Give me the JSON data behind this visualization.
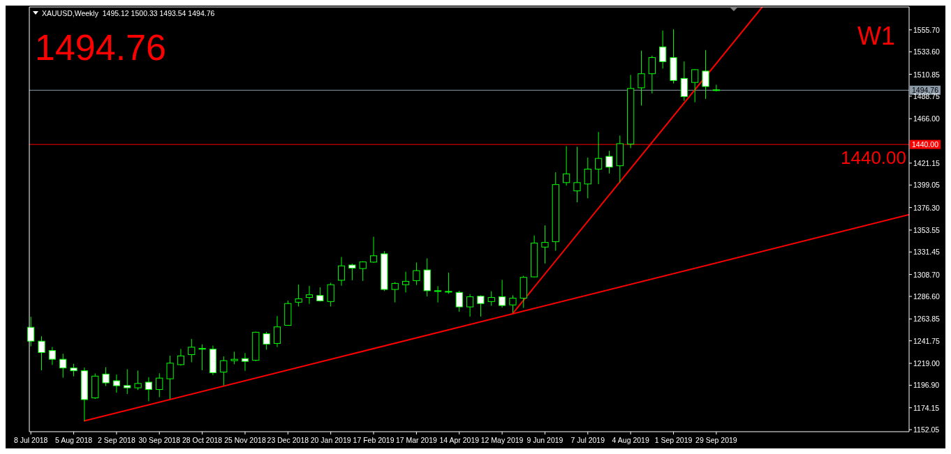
{
  "chart_data": {
    "type": "candlestick",
    "title": "XAUUSD,Weekly  1495.12 1500.33 1493.54 1494.76",
    "color": "#00ff00",
    "x": [
      "2018-07-08",
      "2018-07-15",
      "2018-07-22",
      "2018-07-29",
      "2018-08-05",
      "2018-08-12",
      "2018-08-19",
      "2018-08-26",
      "2018-09-02",
      "2018-09-09",
      "2018-09-16",
      "2018-09-23",
      "2018-09-30",
      "2018-10-07",
      "2018-10-14",
      "2018-10-21",
      "2018-10-28",
      "2018-11-04",
      "2018-11-11",
      "2018-11-18",
      "2018-11-25",
      "2018-12-02",
      "2018-12-09",
      "2018-12-16",
      "2018-12-23",
      "2018-12-30",
      "2019-01-06",
      "2019-01-13",
      "2019-01-20",
      "2019-01-27",
      "2019-02-03",
      "2019-02-10",
      "2019-02-17",
      "2019-02-24",
      "2019-03-03",
      "2019-03-10",
      "2019-03-17",
      "2019-03-24",
      "2019-03-31",
      "2019-04-07",
      "2019-04-14",
      "2019-04-21",
      "2019-04-28",
      "2019-05-05",
      "2019-05-12",
      "2019-05-19",
      "2019-05-26",
      "2019-06-02",
      "2019-06-09",
      "2019-06-16",
      "2019-06-23",
      "2019-06-30",
      "2019-07-07",
      "2019-07-14",
      "2019-07-21",
      "2019-07-28",
      "2019-08-04",
      "2019-08-11",
      "2019-08-18",
      "2019-08-25",
      "2019-09-01",
      "2019-09-08",
      "2019-09-15",
      "2019-09-22",
      "2019-09-29"
    ],
    "ohlc": [
      [
        1255.4,
        1266.0,
        1236.2,
        1241.4
      ],
      [
        1241.4,
        1246.3,
        1212.0,
        1229.9
      ],
      [
        1231.9,
        1235.5,
        1217.4,
        1223.1
      ],
      [
        1223.1,
        1228.7,
        1204.5,
        1214.3
      ],
      [
        1214.3,
        1218.5,
        1205.9,
        1211.5
      ],
      [
        1211.5,
        1214.7,
        1160.9,
        1182.4
      ],
      [
        1184.1,
        1208.8,
        1183.1,
        1206.1
      ],
      [
        1208.2,
        1215.1,
        1196.1,
        1199.3
      ],
      [
        1201.4,
        1207.7,
        1189.4,
        1196.4
      ],
      [
        1196.6,
        1213.1,
        1188.0,
        1194.3
      ],
      [
        1194.3,
        1211.7,
        1192.1,
        1198.7
      ],
      [
        1200.0,
        1205.0,
        1180.8,
        1192.6
      ],
      [
        1192.6,
        1209.0,
        1184.8,
        1204.1
      ],
      [
        1203.4,
        1226.7,
        1183.1,
        1219.2
      ],
      [
        1217.7,
        1233.5,
        1216.7,
        1226.5
      ],
      [
        1227.8,
        1243.6,
        1220.1,
        1235.3
      ],
      [
        1234.0,
        1238.2,
        1212.0,
        1233.7
      ],
      [
        1233.3,
        1236.9,
        1207.2,
        1209.5
      ],
      [
        1210.2,
        1226.0,
        1196.6,
        1221.7
      ],
      [
        1221.7,
        1230.7,
        1218.1,
        1223.1
      ],
      [
        1223.8,
        1229.4,
        1211.5,
        1221.0
      ],
      [
        1222.1,
        1251.0,
        1221.2,
        1250.4
      ],
      [
        1248.9,
        1250.9,
        1232.8,
        1238.4
      ],
      [
        1239.1,
        1266.7,
        1235.5,
        1255.8
      ],
      [
        1257.4,
        1282.3,
        1257.0,
        1279.4
      ],
      [
        1280.7,
        1298.6,
        1276.4,
        1284.1
      ],
      [
        1285.5,
        1297.2,
        1279.1,
        1288.2
      ],
      [
        1287.5,
        1295.7,
        1281.4,
        1282.1
      ],
      [
        1281.4,
        1300.4,
        1276.4,
        1298.4
      ],
      [
        1302.9,
        1326.4,
        1297.4,
        1317.4
      ],
      [
        1318.3,
        1319.6,
        1302.9,
        1315.1
      ],
      [
        1314.7,
        1322.1,
        1302.2,
        1321.4
      ],
      [
        1321.2,
        1346.8,
        1320.5,
        1327.6
      ],
      [
        1329.6,
        1332.3,
        1292.0,
        1293.6
      ],
      [
        1293.6,
        1301.1,
        1280.5,
        1299.7
      ],
      [
        1298.4,
        1311.5,
        1290.6,
        1301.8
      ],
      [
        1302.5,
        1320.8,
        1298.1,
        1312.6
      ],
      [
        1313.3,
        1325.0,
        1286.6,
        1292.3
      ],
      [
        1292.3,
        1297.0,
        1280.5,
        1292.0
      ],
      [
        1291.6,
        1310.6,
        1289.3,
        1291.1
      ],
      [
        1290.6,
        1292.3,
        1271.0,
        1276.0
      ],
      [
        1276.0,
        1288.9,
        1266.2,
        1286.2
      ],
      [
        1286.8,
        1287.7,
        1266.2,
        1279.4
      ],
      [
        1281.4,
        1291.8,
        1277.1,
        1285.5
      ],
      [
        1286.2,
        1303.3,
        1275.3,
        1277.4
      ],
      [
        1278.0,
        1287.7,
        1270.1,
        1284.8
      ],
      [
        1284.8,
        1307.4,
        1275.0,
        1305.8
      ],
      [
        1306.3,
        1348.1,
        1305.8,
        1340.4
      ],
      [
        1336.4,
        1358.3,
        1319.8,
        1341.1
      ],
      [
        1341.8,
        1411.9,
        1332.7,
        1399.5
      ],
      [
        1401.5,
        1438.3,
        1398.5,
        1410.3
      ],
      [
        1393.1,
        1437.7,
        1381.6,
        1401.5
      ],
      [
        1400.1,
        1426.8,
        1385.6,
        1415.1
      ],
      [
        1415.1,
        1452.6,
        1399.9,
        1425.9
      ],
      [
        1428.0,
        1433.6,
        1410.7,
        1417.1
      ],
      [
        1418.5,
        1449.0,
        1401.5,
        1440.8
      ],
      [
        1440.4,
        1510.2,
        1436.3,
        1496.5
      ],
      [
        1497.2,
        1534.7,
        1479.2,
        1511.4
      ],
      [
        1511.4,
        1529.7,
        1491.5,
        1527.7
      ],
      [
        1538.5,
        1555.0,
        1516.6,
        1523.6
      ],
      [
        1527.7,
        1556.2,
        1501.6,
        1504.6
      ],
      [
        1506.7,
        1523.8,
        1484.0,
        1488.3
      ],
      [
        1502.6,
        1516.1,
        1482.6,
        1515.5
      ],
      [
        1514.1,
        1535.3,
        1486.0,
        1498.5
      ],
      [
        1495.12,
        1500.33,
        1493.54,
        1494.76
      ]
    ],
    "series": [
      {
        "type": "line",
        "color": "#ff0000",
        "x": [
          "2018-08-12",
          "2020-02-02"
        ],
        "values": [
          1160.9,
          1369.1
        ]
      },
      {
        "type": "line",
        "color": "#ff0000",
        "x": [
          "2019-05-19",
          "2019-10-29"
        ],
        "values": [
          1269.4,
          1578.8
        ]
      }
    ],
    "xlim": [
      "2018-07-07",
      "2020-02-02"
    ],
    "ylim": [
      1150.0,
      1578.8
    ],
    "xticks": [
      {
        "value": "2018-07-08",
        "label": "8 Jul 2018"
      },
      {
        "value": "2018-08-05",
        "label": "5 Aug 2018"
      },
      {
        "value": "2018-09-02",
        "label": "2 Sep 2018"
      },
      {
        "value": "2018-09-30",
        "label": "30 Sep 2018"
      },
      {
        "value": "2018-10-28",
        "label": "28 Oct 2018"
      },
      {
        "value": "2018-11-25",
        "label": "25 Nov 2018"
      },
      {
        "value": "2018-12-23",
        "label": "23 Dec 2018"
      },
      {
        "value": "2019-01-20",
        "label": "20 Jan 2019"
      },
      {
        "value": "2019-02-17",
        "label": "17 Feb 2019"
      },
      {
        "value": "2019-03-17",
        "label": "17 Mar 2019"
      },
      {
        "value": "2019-04-14",
        "label": "14 Apr 2019"
      },
      {
        "value": "2019-05-12",
        "label": "12 May 2019"
      },
      {
        "value": "2019-06-09",
        "label": "9 Jun 2019"
      },
      {
        "value": "2019-07-07",
        "label": "7 Jul 2019"
      },
      {
        "value": "2019-08-04",
        "label": "4 Aug 2019"
      },
      {
        "value": "2019-09-01",
        "label": "1 Sep 2019"
      },
      {
        "value": "2019-09-29",
        "label": "29 Sep 2019"
      }
    ],
    "yticks": [
      {
        "value": 1152.05,
        "label": "1152.05"
      },
      {
        "value": 1174.15,
        "label": "1174.15"
      },
      {
        "value": 1196.9,
        "label": "1196.90"
      },
      {
        "value": 1219.0,
        "label": "1219.00"
      },
      {
        "value": 1241.75,
        "label": "1241.75"
      },
      {
        "value": 1263.85,
        "label": "1263.85"
      },
      {
        "value": 1286.6,
        "label": "1286.60"
      },
      {
        "value": 1308.7,
        "label": "1308.70"
      },
      {
        "value": 1331.45,
        "label": "1331.45"
      },
      {
        "value": 1353.55,
        "label": "1353.55"
      },
      {
        "value": 1376.3,
        "label": "1376.30"
      },
      {
        "value": 1399.05,
        "label": "1399.05"
      },
      {
        "value": 1421.15,
        "label": "1421.15"
      },
      {
        "value": 1466.0,
        "label": "1466.00"
      },
      {
        "value": 1488.75,
        "label": "1488.75"
      },
      {
        "value": 1510.85,
        "label": "1510.85"
      },
      {
        "value": 1533.6,
        "label": "1533.60"
      },
      {
        "value": 1555.7,
        "label": "1555.70"
      }
    ],
    "ref_lines": [
      {
        "axis": "y",
        "value": 1494.76,
        "label": "1494.76",
        "color": "#8c9aa8"
      },
      {
        "axis": "y",
        "value": 1440.0,
        "label": "1440.00",
        "color": "#ff0000"
      }
    ],
    "annotations": [
      "1494.76",
      "W1",
      "1440.00"
    ]
  }
}
